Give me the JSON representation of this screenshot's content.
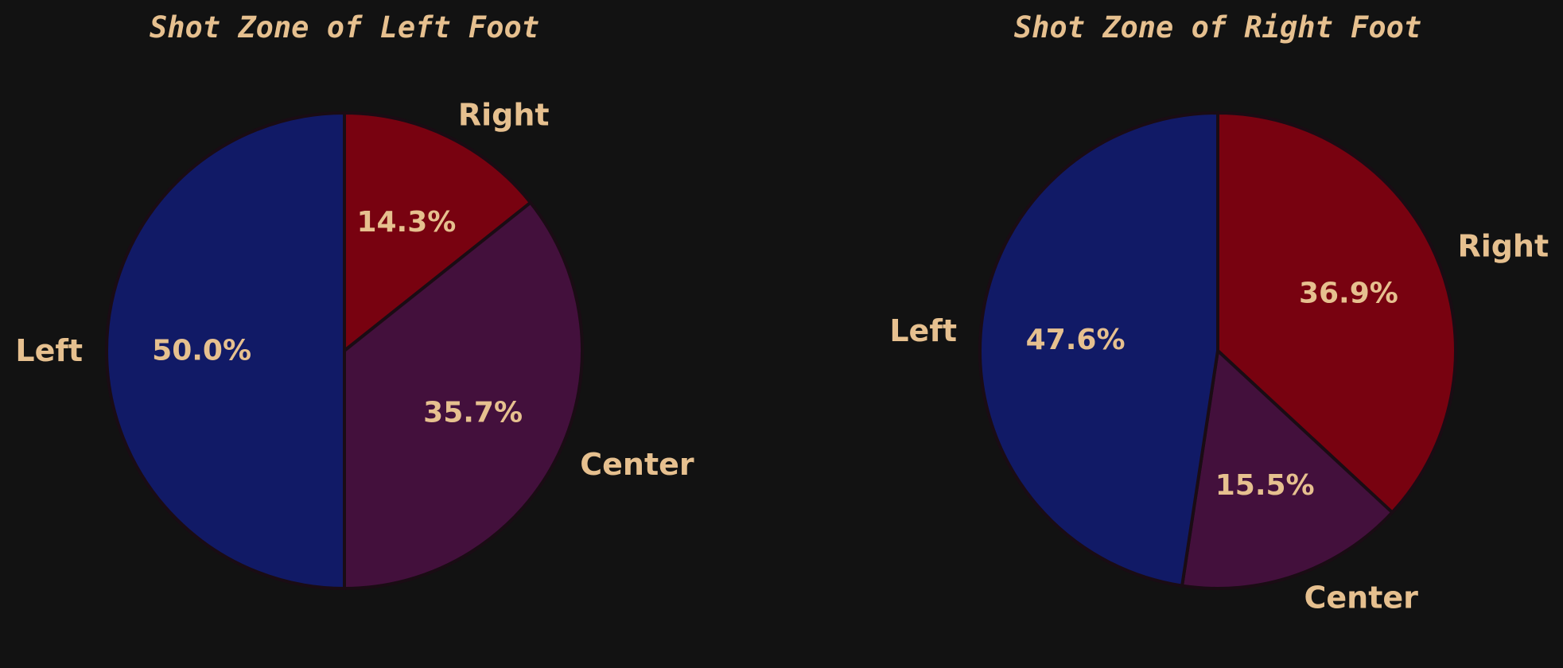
{
  "colors": {
    "background": "#121212",
    "text": "#e6c08f",
    "edge": "#1a0c14",
    "Left": "#111a66",
    "Center": "#43103c",
    "Right": "#780210"
  },
  "chart_data": [
    {
      "type": "pie",
      "title": "Shot Zone of Left Foot",
      "slices": [
        {
          "label": "Right",
          "value": 14.3,
          "pct_label": "14.3%",
          "color": "#780210"
        },
        {
          "label": "Center",
          "value": 35.7,
          "pct_label": "35.7%",
          "color": "#43103c"
        },
        {
          "label": "Left",
          "value": 50.0,
          "pct_label": "50.0%",
          "color": "#111a66"
        }
      ],
      "start_angle": "12 o'clock",
      "direction": "clockwise"
    },
    {
      "type": "pie",
      "title": "Shot Zone of Right Foot",
      "slices": [
        {
          "label": "Right",
          "value": 36.9,
          "pct_label": "36.9%",
          "color": "#780210"
        },
        {
          "label": "Center",
          "value": 15.5,
          "pct_label": "15.5%",
          "color": "#43103c"
        },
        {
          "label": "Left",
          "value": 47.6,
          "pct_label": "47.6%",
          "color": "#111a66"
        }
      ],
      "start_angle": "12 o'clock",
      "direction": "clockwise"
    }
  ]
}
